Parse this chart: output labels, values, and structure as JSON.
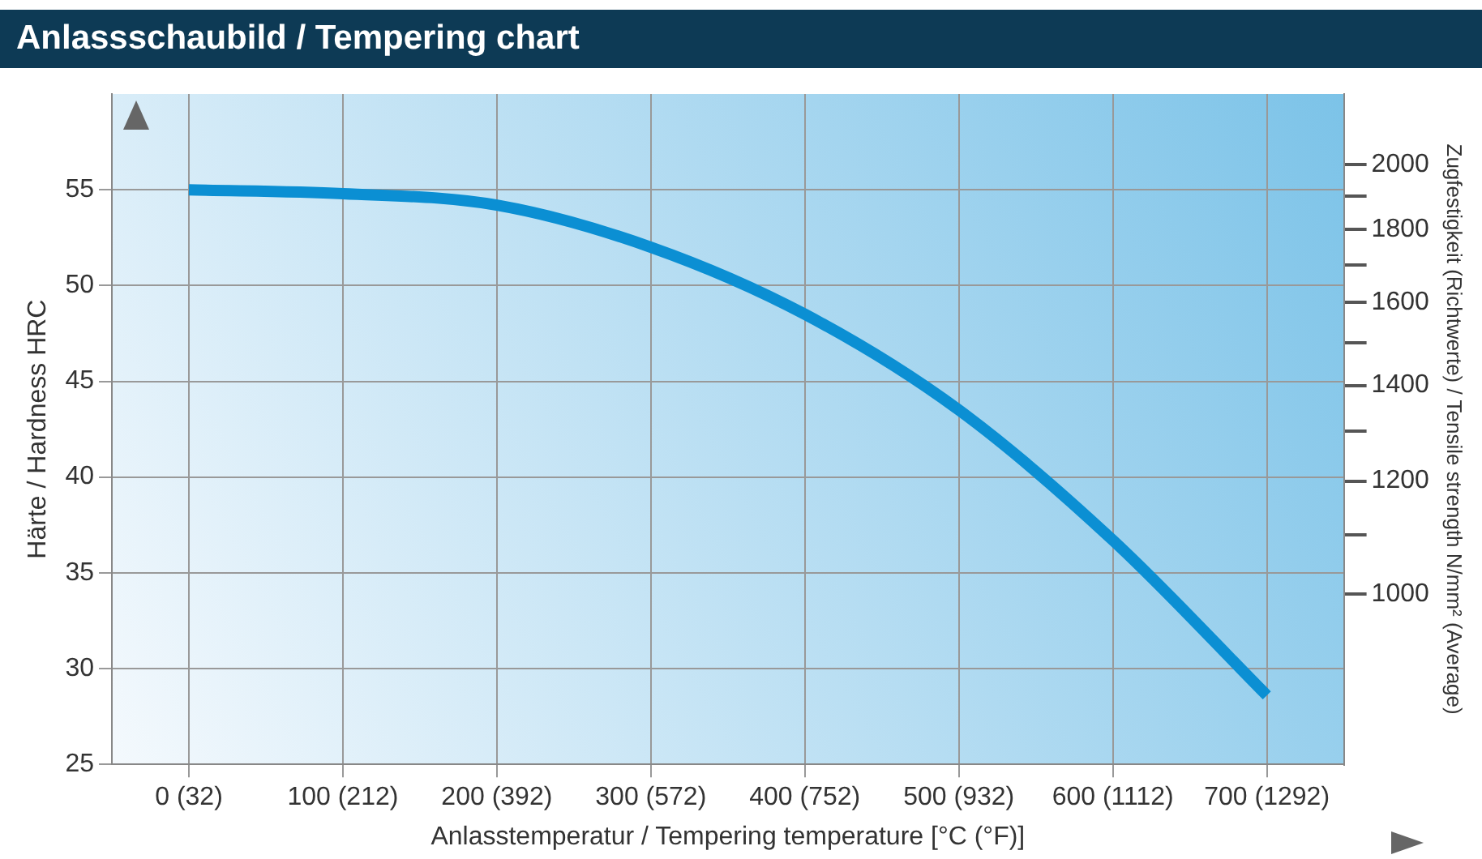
{
  "chart_data": {
    "type": "line",
    "title": "Anlassschaubild / Tempering chart",
    "xlabel": "Anlasstemperatur / Tempering temperature [°C (°F)]",
    "ylabel": "Härte / Hardness HRC",
    "y2label": "Zugfestigkeit (Richtwerte) / Tensile strength N/mm² (Average)",
    "categories": [
      "0 (32)",
      "100 (212)",
      "200 (392)",
      "300 (572)",
      "400 (752)",
      "500 (932)",
      "600 (1112)",
      "700 (1292)"
    ],
    "series": [
      {
        "color": "#0b8fd3",
        "values": [
          55,
          54.8,
          54.2,
          52,
          48.5,
          43.5,
          36.7,
          28.6
        ]
      }
    ],
    "ylim": [
      25,
      60
    ],
    "yticks": [
      25,
      30,
      35,
      40,
      45,
      50,
      55
    ],
    "y2lim": [
      760,
      2240
    ],
    "y2ticks": [
      1000,
      {
        "value": 1100,
        "label": null
      },
      1200,
      {
        "value": 1300,
        "label": null
      },
      1400,
      {
        "value": 1500,
        "label": null
      },
      1600,
      {
        "value": 1700,
        "label": null
      },
      1800,
      {
        "value": 1900,
        "label": null
      },
      2000
    ],
    "log": "y2",
    "grid": true,
    "legend": false,
    "marker": "none",
    "line_style": "solid"
  }
}
